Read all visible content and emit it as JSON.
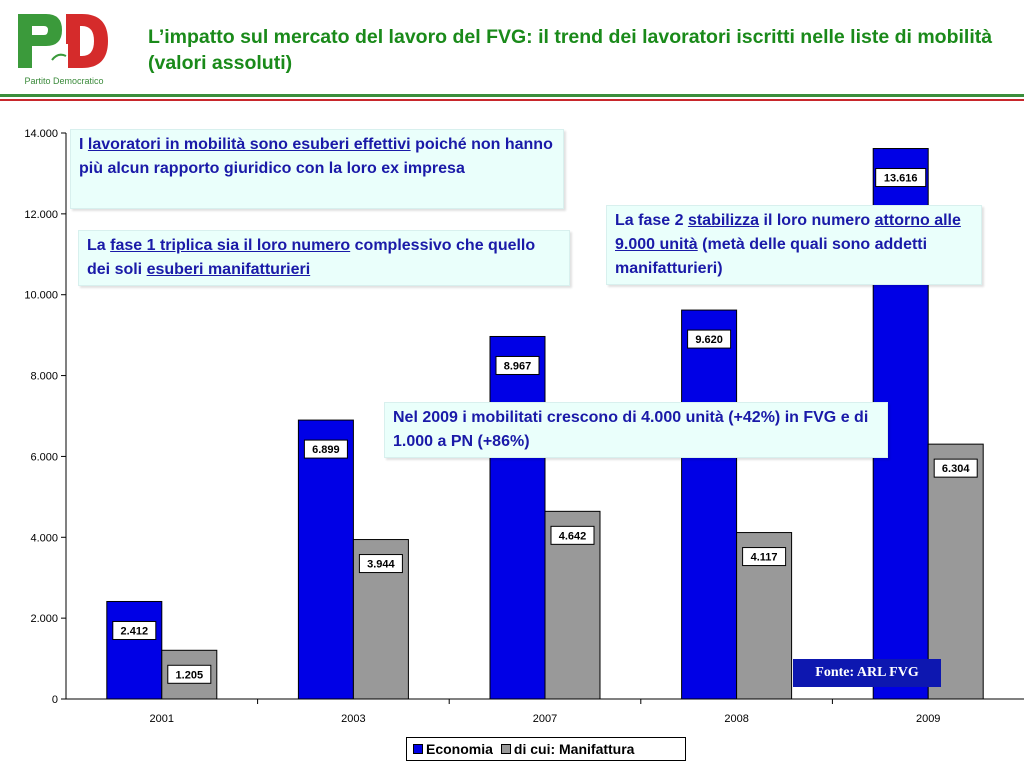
{
  "header": {
    "logo_text": "Partito Democratico",
    "title": "L’impatto sul mercato del lavoro del FVG: il trend dei lavoratori iscritti nelle liste di mobilità (valori assoluti)"
  },
  "colors": {
    "economia": "#0000e6",
    "manifattura": "#999999",
    "title_green": "#1a8a1a",
    "note_text": "#1a1aa8",
    "note_bg": "#eafffb",
    "source_bg": "#0d17b0"
  },
  "chart_data": {
    "type": "bar",
    "categories": [
      "2001",
      "2003",
      "2007",
      "2008",
      "2009"
    ],
    "series": [
      {
        "name": "Economia",
        "values": [
          2412,
          6899,
          8967,
          9620,
          13616
        ]
      },
      {
        "name": "di cui: Manifattura",
        "values": [
          1205,
          3944,
          4642,
          4117,
          6304
        ]
      }
    ],
    "data_labels": [
      [
        "2.412",
        "6.899",
        "8.967",
        "9.620",
        "13.616"
      ],
      [
        "1.205",
        "3.944",
        "4.642",
        "4.117",
        "6.304"
      ]
    ],
    "y_ticks": [
      0,
      2000,
      4000,
      6000,
      8000,
      10000,
      12000,
      14000
    ],
    "y_tick_labels": [
      "0",
      "2.000",
      "4.000",
      "6.000",
      "8.000",
      "10.000",
      "12.000",
      "14.000"
    ],
    "ylim": [
      0,
      14000
    ],
    "grid": false,
    "legend_position": "bottom",
    "title": "",
    "xlabel": "",
    "ylabel": ""
  },
  "notes": {
    "note1": {
      "prefix": "I ",
      "underlined": "lavoratori in mobilità sono esuberi effettivi",
      "suffix": " poiché non hanno più alcun rapporto giuridico con la loro ex impresa"
    },
    "note2": {
      "prefix": "La ",
      "underlined1": "fase 1 triplica sia il loro numero",
      "middle": " complessivo che quello dei soli ",
      "underlined2": "esuberi manifatturieri"
    },
    "note3": {
      "prefix": "La fase 2 ",
      "underlined1": "stabilizza",
      "middle": " il loro numero ",
      "underlined2": "attorno alle 9.000 unità",
      "suffix": " (metà delle quali sono addetti manifatturieri)"
    },
    "note4": {
      "text": "Nel 2009 i mobilitati crescono di 4.000 unità (+42%) in FVG e di 1.000 a PN (+86%)"
    }
  },
  "source": "Fonte: ARL FVG",
  "legend": {
    "economia": "Economia",
    "manifattura": "di cui: Manifattura"
  }
}
